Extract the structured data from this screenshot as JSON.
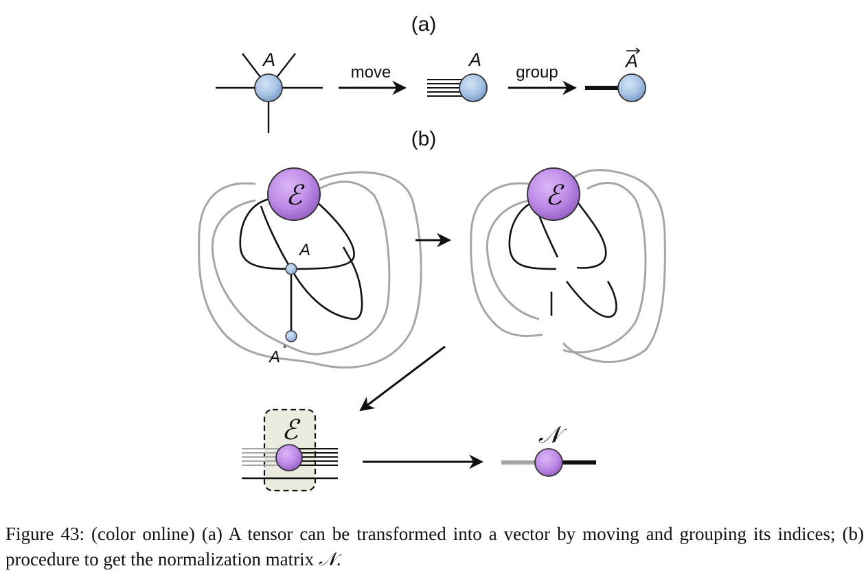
{
  "figure": {
    "panel_a_label": "(a)",
    "panel_b_label": "(b)",
    "arrow_move_label": "move",
    "arrow_group_label": "group",
    "tensor_label": "A",
    "tensor_label_2": "A",
    "vector_label": "A",
    "env_label_1": "ℰ",
    "env_label_2": "ℰ",
    "env_label_3": "ℰ",
    "tensor_site_label": "A",
    "tensor_conj_label": "A",
    "conj_superscript": "*",
    "norm_label": "𝒩",
    "colors": {
      "tensor_fill": "#a9c5e6",
      "env_fill": "#bf8ce8",
      "loop_gray": "#a6a6a6",
      "box_fill": "#ecebe0"
    }
  },
  "caption": {
    "prefix": "Figure 43: (color online) (a) A tensor can be transformed into a vector by moving and grouping its indices; (b) procedure to get the normalization matrix ",
    "symbol": "𝒩",
    "suffix": "."
  }
}
